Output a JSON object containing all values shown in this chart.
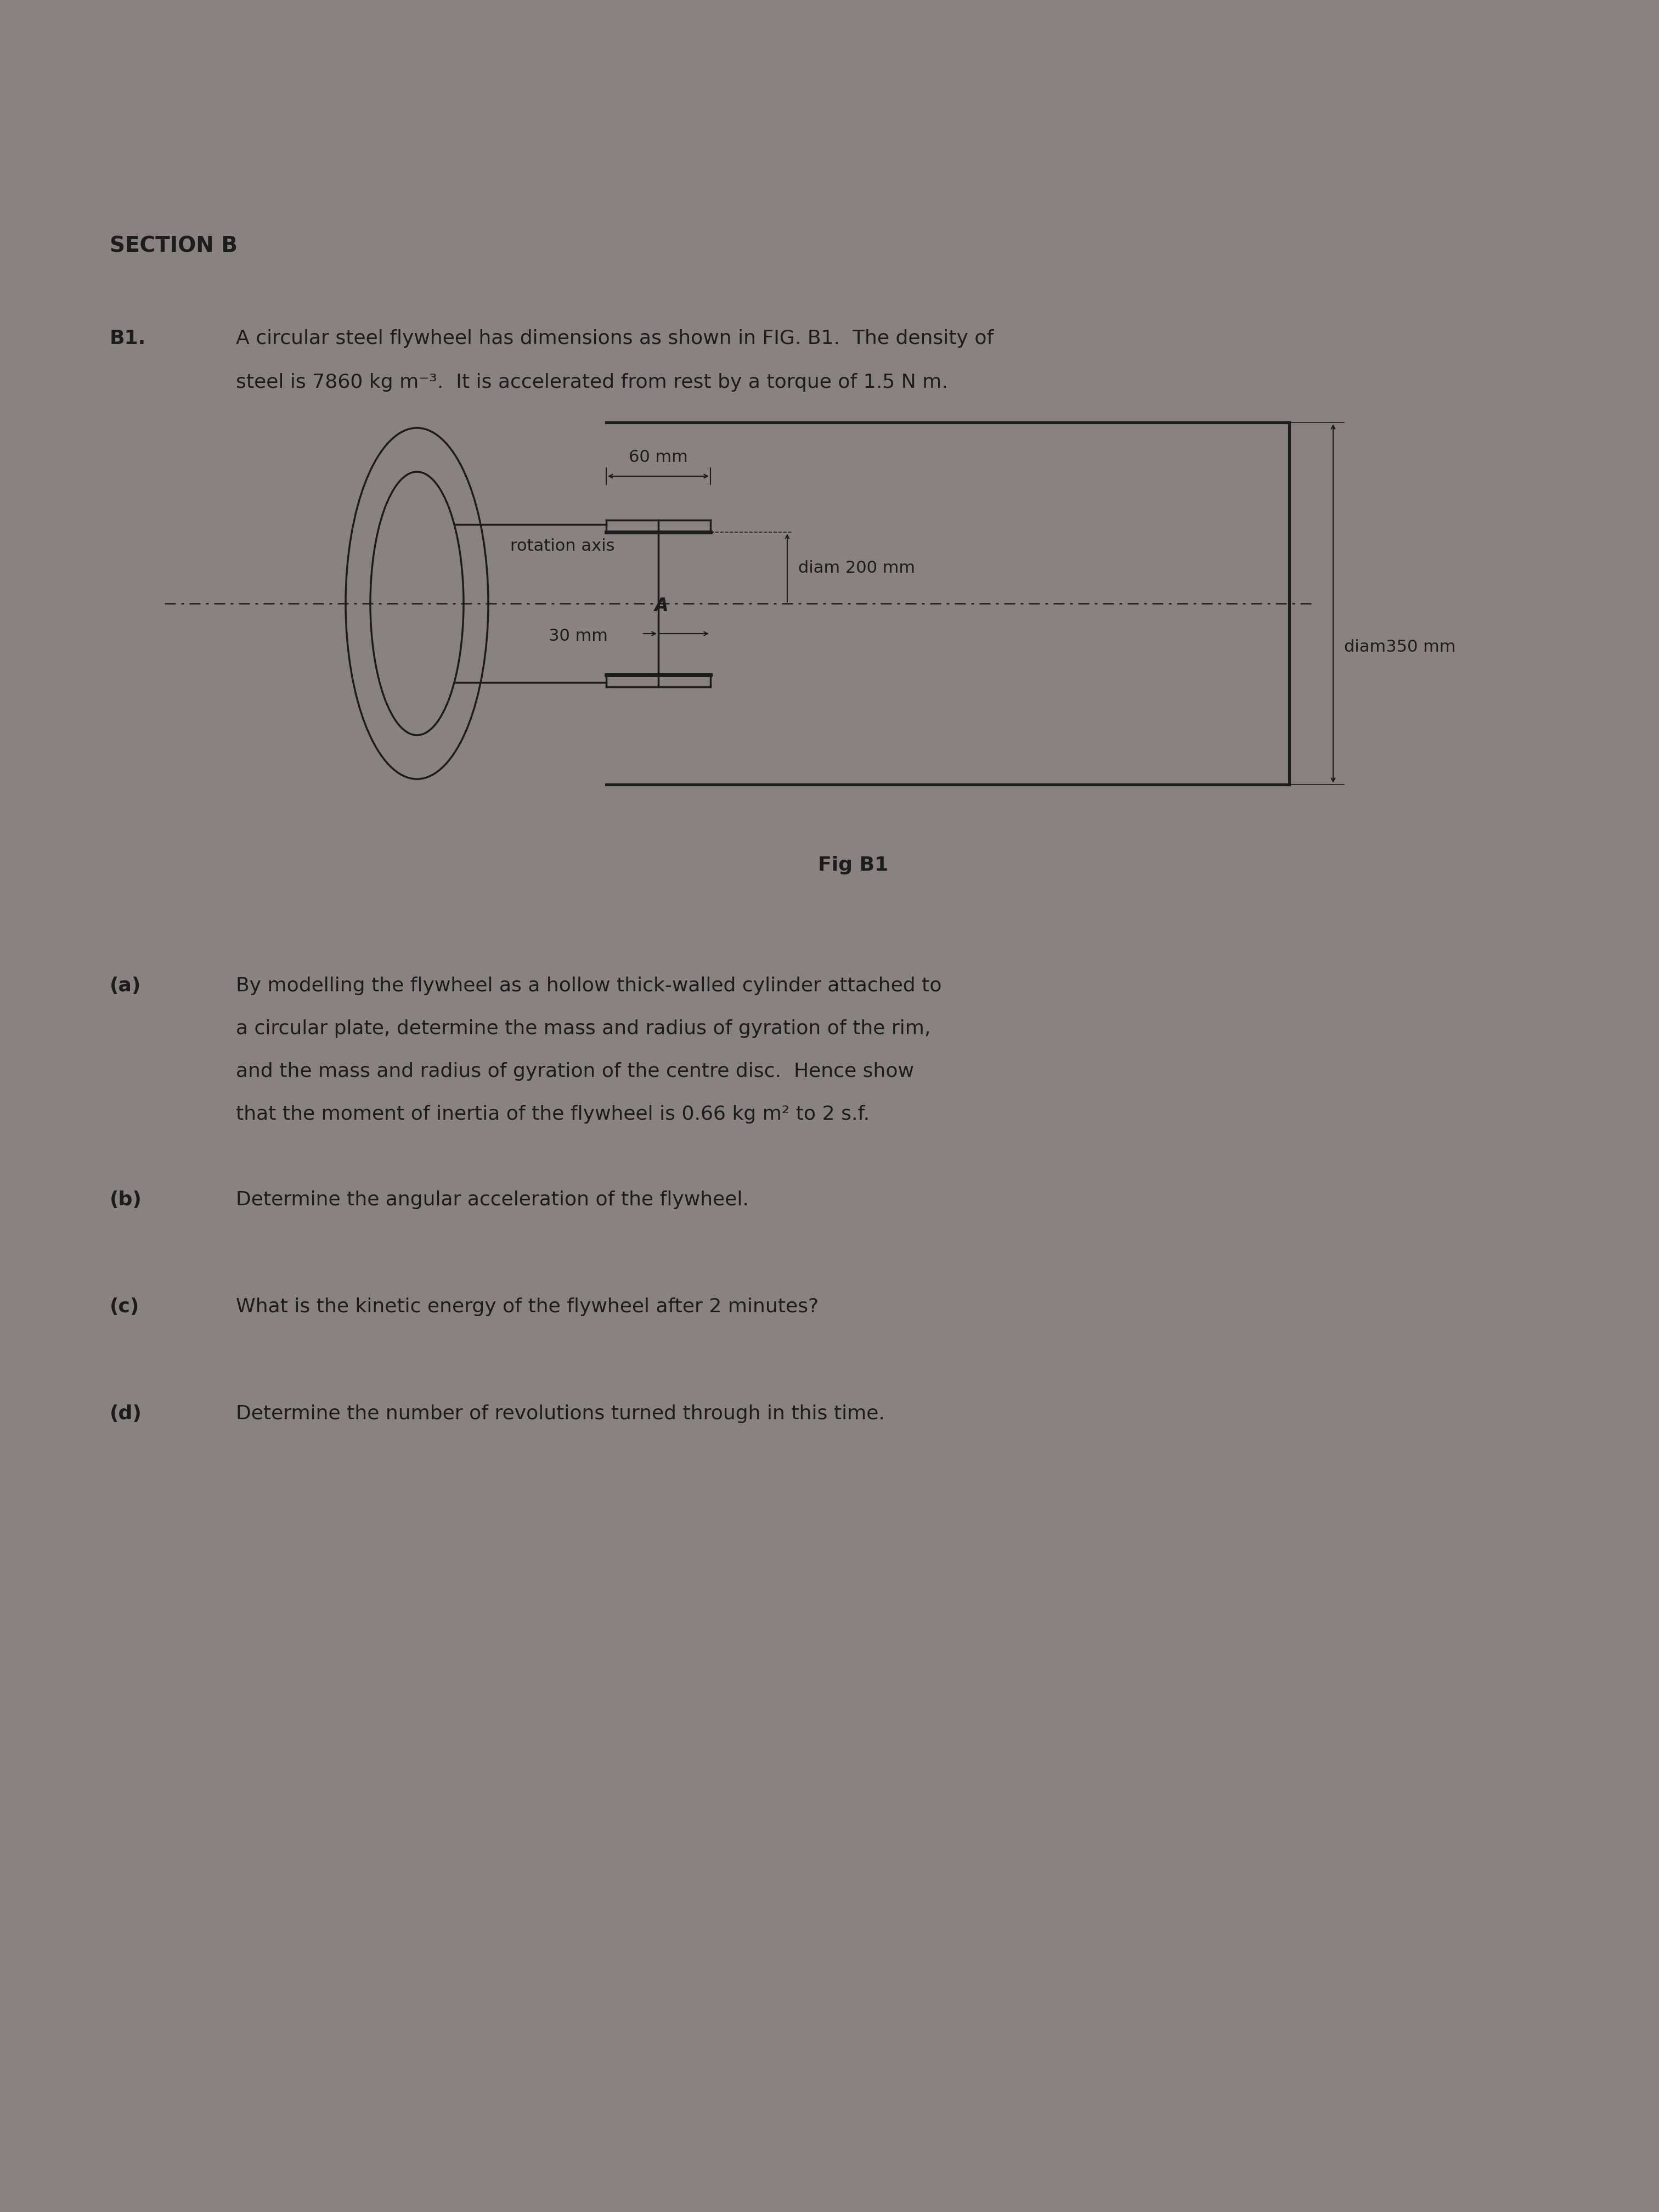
{
  "bg_color": "#8a8280",
  "text_color": "#1c1c1c",
  "section_b": "SECTION B",
  "b1_label": "B1.",
  "b1_text_line1": "A circular steel flywheel has dimensions as shown in FIG. B1.  The density of",
  "b1_text_line2": "steel is 7860 kg m⁻³.  It is accelerated from rest by a torque of 1.5 N m.",
  "fig_caption": "Fig B1",
  "dim_60mm": "60 mm",
  "dim_200mm": "diam 200 mm",
  "dim_350mm": "diam350 mm",
  "dim_30mm": "30 mm",
  "rot_axis": "rotation axis",
  "qa_label": "(a)",
  "qa_text_line1": "By modelling the flywheel as a hollow thick-walled cylinder attached to",
  "qa_text_line2": "a circular plate, determine the mass and radius of gyration of the rim,",
  "qa_text_line3": "and the mass and radius of gyration of the centre disc.  Hence show",
  "qa_text_line4": "that the moment of inertia of the flywheel is 0.66 kg m² to 2 s.f.",
  "qb_label": "(b)",
  "qb_text": "Determine the angular acceleration of the flywheel.",
  "qc_label": "(c)",
  "qc_text": "What is the kinetic energy of the flywheel after 2 minutes?",
  "qd_label": "(d)",
  "qd_text": "Determine the number of revolutions turned through in this time."
}
